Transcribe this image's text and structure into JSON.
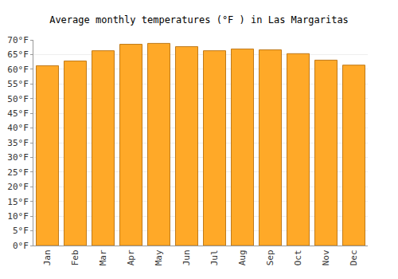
{
  "chart_data": {
    "type": "bar",
    "title": "Average monthly temperatures (°F ) in Las Margaritas",
    "categories": [
      "Jan",
      "Feb",
      "Mar",
      "Apr",
      "May",
      "Jun",
      "Jul",
      "Aug",
      "Sep",
      "Oct",
      "Nov",
      "Dec"
    ],
    "values": [
      61.2,
      62.8,
      66.3,
      68.5,
      68.8,
      67.7,
      66.3,
      66.9,
      66.6,
      65.3,
      63.1,
      61.4
    ],
    "color": "#ffa928",
    "ylim": [
      0,
      70
    ],
    "yticks": [
      {
        "value": 0,
        "label": "0°F"
      },
      {
        "value": 5,
        "label": "5°F"
      },
      {
        "value": 10,
        "label": "10°F"
      },
      {
        "value": 15,
        "label": "15°F"
      },
      {
        "value": 20,
        "label": "20°F"
      },
      {
        "value": 25,
        "label": "25°F"
      },
      {
        "value": 30,
        "label": "30°F"
      },
      {
        "value": 35,
        "label": "35°F"
      },
      {
        "value": 40,
        "label": "40°F"
      },
      {
        "value": 45,
        "label": "45°F"
      },
      {
        "value": 50,
        "label": "50°F"
      },
      {
        "value": 55,
        "label": "55°F"
      },
      {
        "value": 60,
        "label": "60°F"
      },
      {
        "value": 65,
        "label": "65°F"
      },
      {
        "value": 70,
        "label": "70°F"
      }
    ],
    "grid": true
  }
}
